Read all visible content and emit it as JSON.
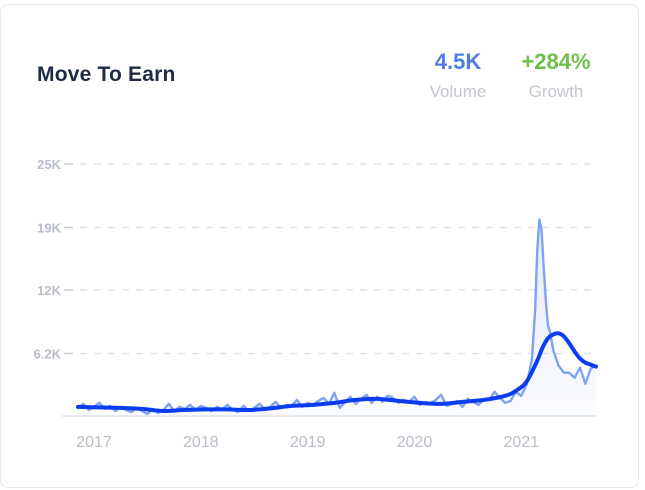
{
  "title": "Move To Earn",
  "stats": {
    "volume_value": "4.5K",
    "volume_label": "Volume",
    "growth_value": "+284%",
    "growth_label": "Growth"
  },
  "colors": {
    "volume": "#4f7ee0",
    "growth": "#6cc04a",
    "raw_line": "#7ea3f0",
    "trend_line": "#0a3df0",
    "grid": "#dde0e7"
  },
  "chart_data": {
    "type": "line",
    "ylim": [
      0,
      25000
    ],
    "yticks": [
      {
        "value": 6200,
        "label": "6.2K"
      },
      {
        "value": 12500,
        "label": "12K"
      },
      {
        "value": 18700,
        "label": "19K"
      },
      {
        "value": 25000,
        "label": "25K"
      }
    ],
    "xlim": [
      2017.0,
      2021.85
    ],
    "xticks": [
      {
        "value": 2017.15,
        "label": "2017"
      },
      {
        "value": 2018.15,
        "label": "2018"
      },
      {
        "value": 2019.15,
        "label": "2019"
      },
      {
        "value": 2020.15,
        "label": "2020"
      },
      {
        "value": 2021.15,
        "label": "2021"
      }
    ],
    "grid": true,
    "series": [
      {
        "x": [
          2017.0,
          2017.05,
          2017.1,
          2017.15,
          2017.2,
          2017.25,
          2017.3,
          2017.35,
          2017.4,
          2017.45,
          2017.5,
          2017.55,
          2017.6,
          2017.65,
          2017.7,
          2017.75,
          2017.8,
          2017.85,
          2017.9,
          2017.95,
          2018.0,
          2018.05,
          2018.1,
          2018.15,
          2018.2,
          2018.25,
          2018.3,
          2018.35,
          2018.4,
          2018.45,
          2018.5,
          2018.55,
          2018.6,
          2018.65,
          2018.7,
          2018.75,
          2018.8,
          2018.85,
          2018.9,
          2018.95,
          2019.0,
          2019.05,
          2019.1,
          2019.15,
          2019.2,
          2019.25,
          2019.3,
          2019.35,
          2019.4,
          2019.45,
          2019.5,
          2019.55,
          2019.6,
          2019.65,
          2019.7,
          2019.75,
          2019.8,
          2019.85,
          2019.9,
          2019.95,
          2020.0,
          2020.05,
          2020.1,
          2020.15,
          2020.2,
          2020.25,
          2020.3,
          2020.35,
          2020.4,
          2020.45,
          2020.5,
          2020.55,
          2020.6,
          2020.65,
          2020.7,
          2020.75,
          2020.8,
          2020.85,
          2020.9,
          2020.95,
          2021.0,
          2021.05,
          2021.1,
          2021.15,
          2021.2,
          2021.25,
          2021.28,
          2021.3,
          2021.32,
          2021.34,
          2021.36,
          2021.38,
          2021.4,
          2021.42,
          2021.45,
          2021.5,
          2021.55,
          2021.6,
          2021.65,
          2021.7,
          2021.75,
          2021.8,
          2021.85
        ],
        "y": [
          800,
          1200,
          600,
          900,
          1300,
          700,
          1000,
          500,
          900,
          600,
          400,
          800,
          500,
          200,
          700,
          300,
          600,
          1200,
          500,
          900,
          700,
          1100,
          600,
          1000,
          800,
          500,
          900,
          700,
          1100,
          600,
          400,
          1000,
          500,
          800,
          1200,
          700,
          900,
          1400,
          800,
          1100,
          1000,
          1600,
          900,
          1300,
          1100,
          1500,
          1800,
          1200,
          2300,
          800,
          1400,
          1900,
          1200,
          1700,
          2100,
          1300,
          1900,
          1400,
          2000,
          1800,
          1300,
          1600,
          1400,
          1900,
          1100,
          1400,
          1300,
          1600,
          2100,
          1000,
          1200,
          1500,
          900,
          1700,
          1400,
          1100,
          1700,
          1600,
          2400,
          1800,
          1300,
          1500,
          2400,
          2000,
          3100,
          5600,
          10500,
          16500,
          19500,
          18500,
          14800,
          11500,
          9000,
          8300,
          6500,
          5000,
          4300,
          4300,
          3800,
          4800,
          3200,
          4700,
          5000
        ]
      },
      {
        "x": [
          2017.0,
          2017.2,
          2017.4,
          2017.6,
          2017.8,
          2018.0,
          2018.2,
          2018.4,
          2018.6,
          2018.8,
          2019.0,
          2019.2,
          2019.4,
          2019.6,
          2019.8,
          2020.0,
          2020.2,
          2020.4,
          2020.6,
          2020.8,
          2021.0,
          2021.1,
          2021.2,
          2021.3,
          2021.35,
          2021.4,
          2021.45,
          2021.5,
          2021.55,
          2021.6,
          2021.65,
          2021.7,
          2021.75,
          2021.8,
          2021.85
        ],
        "y": [
          900,
          850,
          800,
          700,
          500,
          600,
          650,
          650,
          600,
          750,
          1000,
          1100,
          1300,
          1600,
          1700,
          1500,
          1300,
          1200,
          1400,
          1600,
          2000,
          2500,
          3400,
          5500,
          6800,
          7700,
          8100,
          8200,
          7900,
          7200,
          6400,
          5700,
          5300,
          5100,
          4900
        ]
      }
    ]
  }
}
